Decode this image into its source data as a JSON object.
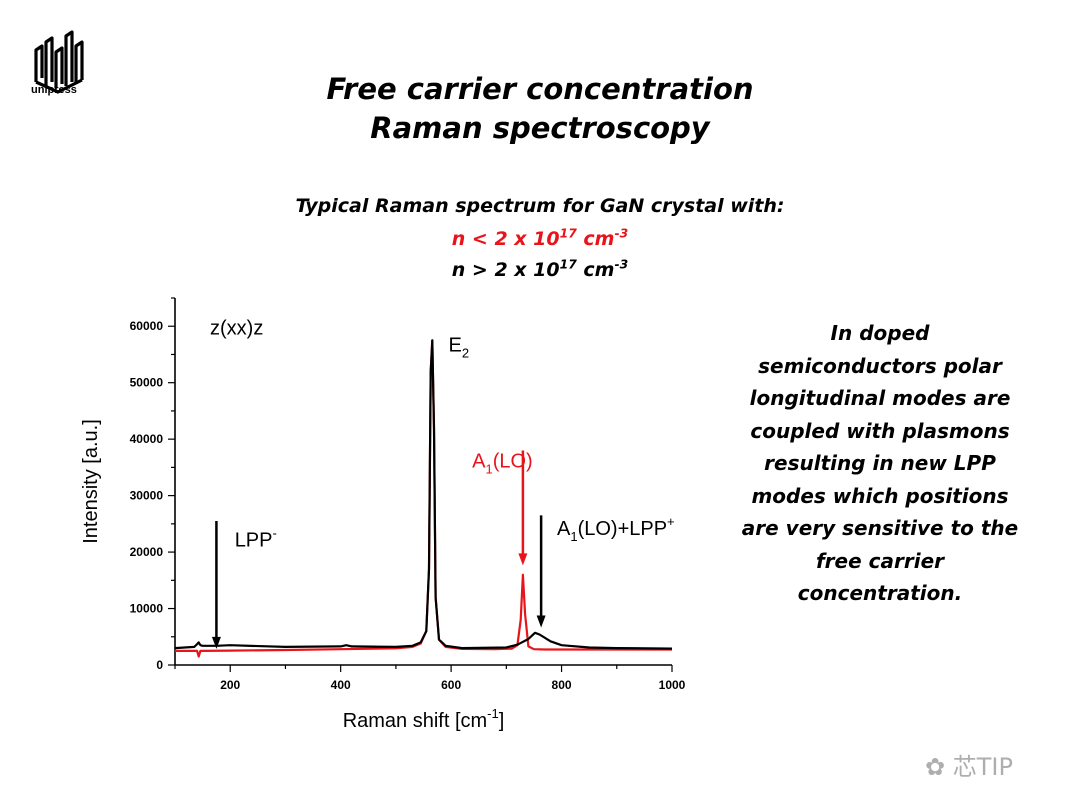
{
  "logo": {
    "text": "unipress"
  },
  "title": {
    "line1": "Free carrier concentration",
    "line2": "Raman spectroscopy"
  },
  "subtitle": {
    "line1": "Typical Raman spectrum for GaN crystal with:",
    "red_line": {
      "prefix": "n < 2 x 10",
      "exp": "17",
      "unit": " cm",
      "unit_exp": "-3"
    },
    "black_line": {
      "prefix": "n > 2 x 10",
      "exp": "17",
      "unit": " cm",
      "unit_exp": "-3"
    }
  },
  "side_note": {
    "lines": [
      "In doped",
      "semiconductors polar",
      "longitudinal modes are",
      "coupled with plasmons",
      "resulting in new LPP",
      "modes which positions",
      "are very sensitive to the",
      "free carrier",
      "concentration."
    ]
  },
  "watermark": {
    "text": "芯TIP"
  },
  "colors": {
    "red": "#e8141a",
    "black": "#000000"
  },
  "chart_data": {
    "type": "line",
    "xlabel": "Raman shift [cm",
    "xlabel_sup": "-1",
    "xlabel_tail": "]",
    "ylabel": "Intensity [a.u.]",
    "xlim": [
      100,
      1000
    ],
    "ylim": [
      0,
      65000
    ],
    "x_ticks": [
      200,
      400,
      600,
      800,
      1000
    ],
    "y_ticks": [
      0,
      10000,
      20000,
      30000,
      40000,
      50000,
      60000
    ],
    "grid": false,
    "annotations": {
      "geometry": "z(xx)z",
      "e2": {
        "text": "E",
        "sub": "2"
      },
      "a1lo_red": {
        "text": "A",
        "sub": "1",
        "tail": "(LO)"
      },
      "a1lo_lpp": {
        "text": "A",
        "sub": "1",
        "tail": "(LO)+LPP",
        "sup": "+"
      },
      "lpp_minus": {
        "text": "LPP",
        "sup": "-"
      }
    },
    "arrows": [
      {
        "x": 175,
        "y_from": 25500,
        "y_to": 3200,
        "color": "#000000"
      },
      {
        "x": 730,
        "y_from": 38000,
        "y_to": 18000,
        "color": "#e8141a"
      },
      {
        "x": 763,
        "y_from": 26500,
        "y_to": 7000,
        "color": "#000000"
      }
    ],
    "series": [
      {
        "color": "#e8141a",
        "x": [
          100,
          140,
          143,
          146,
          150,
          200,
          300,
          400,
          500,
          530,
          545,
          555,
          560,
          563,
          566,
          569,
          572,
          578,
          590,
          620,
          680,
          710,
          720,
          726,
          730,
          734,
          740,
          750,
          770,
          800,
          900,
          1000
        ],
        "y": [
          2500,
          2500,
          1500,
          2500,
          2500,
          2550,
          2650,
          2800,
          2950,
          3200,
          3800,
          6000,
          17000,
          52000,
          57500,
          42000,
          12000,
          4500,
          3200,
          2850,
          2800,
          2900,
          3500,
          8000,
          16000,
          9000,
          3300,
          2800,
          2750,
          2750,
          2750,
          2750
        ]
      },
      {
        "color": "#000000",
        "x": [
          100,
          135,
          140,
          143,
          146,
          150,
          175,
          200,
          300,
          400,
          410,
          420,
          500,
          530,
          545,
          555,
          560,
          563,
          566,
          569,
          572,
          578,
          590,
          620,
          700,
          720,
          740,
          752,
          760,
          780,
          800,
          850,
          900,
          1000
        ],
        "y": [
          3000,
          3200,
          3700,
          4000,
          3500,
          3400,
          3400,
          3500,
          3200,
          3300,
          3500,
          3300,
          3200,
          3400,
          4000,
          6000,
          17000,
          52000,
          57500,
          42000,
          12000,
          4500,
          3400,
          3000,
          3100,
          3600,
          4600,
          5700,
          5400,
          4200,
          3500,
          3100,
          3000,
          2900
        ]
      }
    ]
  }
}
